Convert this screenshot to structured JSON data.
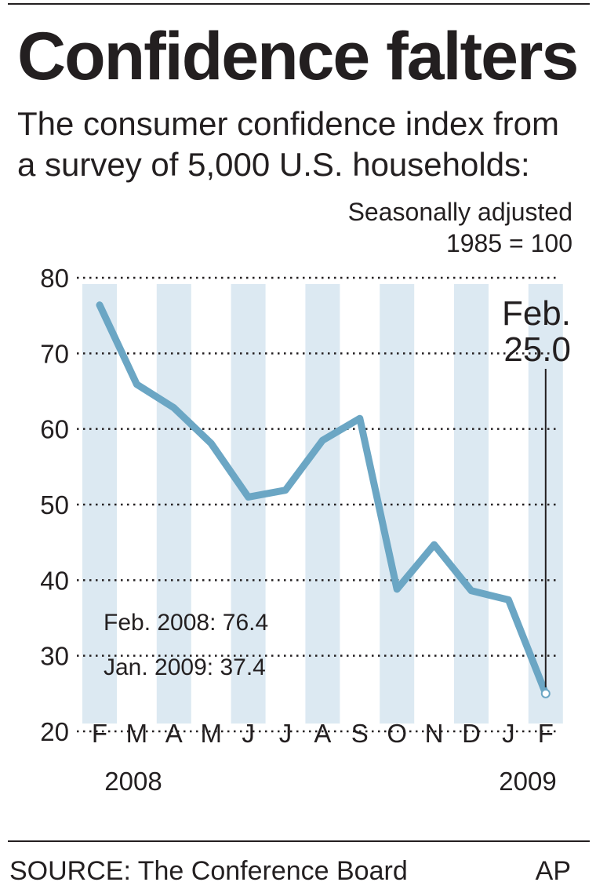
{
  "title": "Confidence falters",
  "subtitle": [
    "The consumer confidence index from",
    "a survey of 5,000 U.S. households:"
  ],
  "adjustment_note": [
    "Seasonally adjusted",
    "1985 = 100"
  ],
  "colors": {
    "line": "#6ba6c4",
    "band": "#dce9f2",
    "text": "#231f20"
  },
  "chart_data": {
    "type": "line",
    "categories": [
      "F",
      "M",
      "A",
      "M",
      "J",
      "J",
      "A",
      "S",
      "O",
      "N",
      "D",
      "J",
      "F"
    ],
    "series": [
      {
        "values": [
          76.4,
          65.9,
          62.8,
          58.1,
          51.0,
          51.9,
          58.5,
          61.4,
          38.8,
          44.7,
          38.6,
          37.4,
          25.0
        ]
      }
    ],
    "year_labels": {
      "start": "2008",
      "end": "2009"
    },
    "ylim": [
      20,
      80
    ],
    "yticks": [
      20,
      30,
      40,
      50,
      60,
      70,
      80
    ],
    "grid": "dotted horizontal",
    "callout": {
      "label": "Feb.",
      "value": "25.0"
    },
    "annotations": [
      "Feb. 2008: 76.4",
      "Jan. 2009: 37.4"
    ]
  },
  "source": "SOURCE: The Conference Board",
  "credit": "AP"
}
